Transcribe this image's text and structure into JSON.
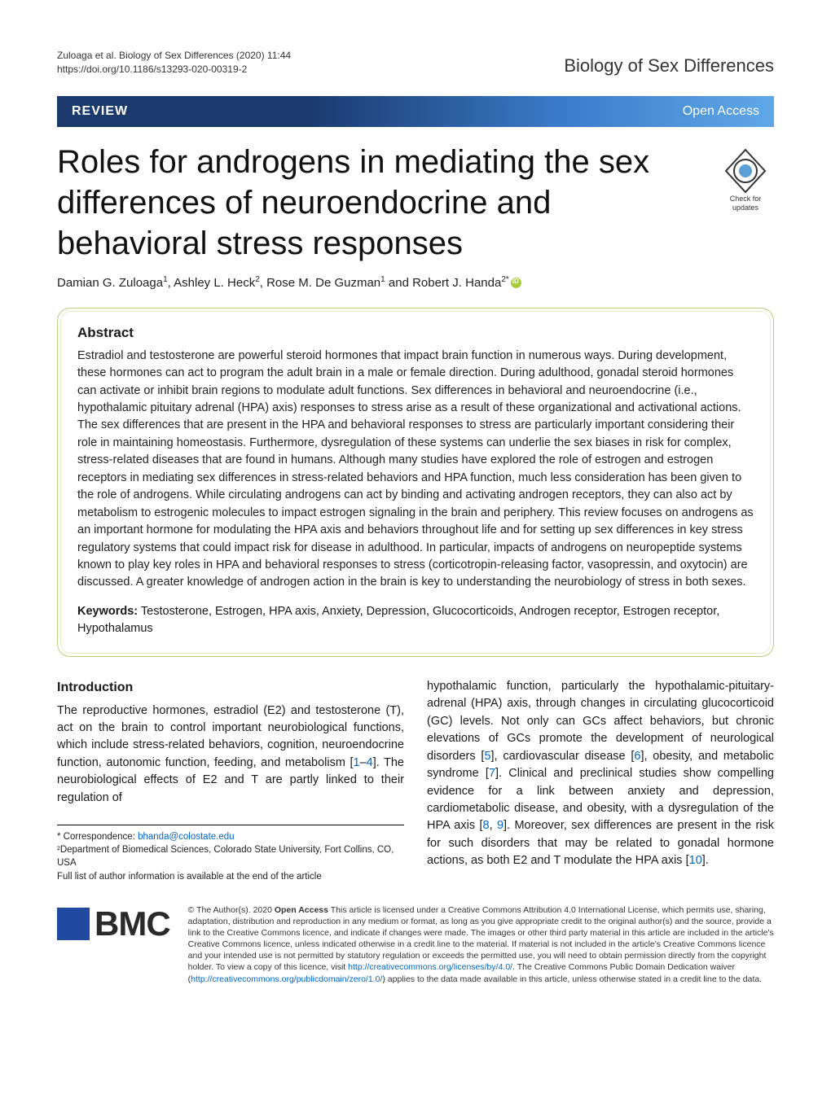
{
  "running_head": {
    "citation": "Zuloaga et al. Biology of Sex Differences        (2020) 11:44",
    "doi": "https://doi.org/10.1186/s13293-020-00319-2",
    "journal": "Biology of Sex Differences"
  },
  "review_bar": {
    "left": "REVIEW",
    "right": "Open Access"
  },
  "check_updates": {
    "line1": "Check for",
    "line2": "updates"
  },
  "title": "Roles for androgens in mediating the sex differences of neuroendocrine and behavioral stress responses",
  "authors_html": "Damian G. Zuloaga<sup>1</sup>, Ashley L. Heck<sup>2</sup>, Rose M. De Guzman<sup>1</sup> and Robert J. Handa<sup>2*</sup>",
  "abstract": {
    "heading": "Abstract",
    "body": "Estradiol and testosterone are powerful steroid hormones that impact brain function in numerous ways. During development, these hormones can act to program the adult brain in a male or female direction. During adulthood, gonadal steroid hormones can activate or inhibit brain regions to modulate adult functions. Sex differences in behavioral and neuroendocrine (i.e., hypothalamic pituitary adrenal (HPA) axis) responses to stress arise as a result of these organizational and activational actions. The sex differences that are present in the HPA and behavioral responses to stress are particularly important considering their role in maintaining homeostasis. Furthermore, dysregulation of these systems can underlie the sex biases in risk for complex, stress-related diseases that are found in humans. Although many studies have explored the role of estrogen and estrogen receptors in mediating sex differences in stress-related behaviors and HPA function, much less consideration has been given to the role of androgens. While circulating androgens can act by binding and activating androgen receptors, they can also act by metabolism to estrogenic molecules to impact estrogen signaling in the brain and periphery. This review focuses on androgens as an important hormone for modulating the HPA axis and behaviors throughout life and for setting up sex differences in key stress regulatory systems that could impact risk for disease in adulthood. In particular, impacts of androgens on neuropeptide systems known to play key roles in HPA and behavioral responses to stress (corticotropin-releasing factor, vasopressin, and oxytocin) are discussed. A greater knowledge of androgen action in the brain is key to understanding the neurobiology of stress in both sexes.",
    "keywords_label": "Keywords:",
    "keywords": "Testosterone, Estrogen, HPA axis, Anxiety, Depression, Glucocorticoids, Androgen receptor, Estrogen receptor, Hypothalamus"
  },
  "intro": {
    "heading": "Introduction",
    "col1_pre": "The reproductive hormones, estradiol (E2) and testosterone (T), act on the brain to control important neurobiological functions, which include stress-related behaviors, cognition, neuroendocrine function, autonomic function, feeding, and metabolism [",
    "col1_ref1": "1",
    "col1_mid1": "–",
    "col1_ref2": "4",
    "col1_post": "]. The neurobiological effects of E2 and T are partly linked to their regulation of",
    "col2_pre": "hypothalamic function, particularly the hypothalamic-pituitary-adrenal (HPA) axis, through changes in circulating glucocorticoid (GC) levels. Not only can GCs affect behaviors, but chronic elevations of GCs promote the development of neurological disorders [",
    "col2_ref5": "5",
    "col2_mid1": "], cardiovascular disease [",
    "col2_ref6": "6",
    "col2_mid2": "], obesity, and metabolic syndrome [",
    "col2_ref7": "7",
    "col2_mid3": "]. Clinical and preclinical studies show compelling evidence for a link between anxiety and depression, cardiometabolic disease, and obesity, with a dysregulation of the HPA axis [",
    "col2_ref8": "8",
    "col2_mid4": ", ",
    "col2_ref9": "9",
    "col2_mid5": "]. Moreover, sex differences are present in the risk for such disorders that may be related to gonadal hormone actions, as both E2 and T modulate the HPA axis [",
    "col2_ref10": "10",
    "col2_post": "]."
  },
  "footnotes": {
    "corr_label": "* Correspondence: ",
    "corr_email": "bhanda@colostate.edu",
    "affil2": "²Department of Biomedical Sciences, Colorado State University, Fort Collins, CO, USA",
    "full_list": "Full list of author information is available at the end of the article"
  },
  "bmc_logo_text": "BMC",
  "license": {
    "pre": "© The Author(s). 2020 ",
    "oa_bold": "Open Access",
    "body1": " This article is licensed under a Creative Commons Attribution 4.0 International License, which permits use, sharing, adaptation, distribution and reproduction in any medium or format, as long as you give appropriate credit to the original author(s) and the source, provide a link to the Creative Commons licence, and indicate if changes were made. The images or other third party material in this article are included in the article's Creative Commons licence, unless indicated otherwise in a credit line to the material. If material is not included in the article's Creative Commons licence and your intended use is not permitted by statutory regulation or exceeds the permitted use, you will need to obtain permission directly from the copyright holder. To view a copy of this licence, visit ",
    "link1": "http://creativecommons.org/licenses/by/4.0/",
    "body2": ". The Creative Commons Public Domain Dedication waiver (",
    "link2": "http://creativecommons.org/publicdomain/zero/1.0/",
    "body3": ") applies to the data made available in this article, unless otherwise stated in a credit line to the data."
  },
  "colors": {
    "review_bar_start": "#1a3a6e",
    "review_bar_end": "#5fa8e8",
    "abstract_border": "#b7d07a",
    "link": "#0066cc",
    "bmc_square": "#1f4aa0",
    "orcid": "#a6ce39"
  }
}
